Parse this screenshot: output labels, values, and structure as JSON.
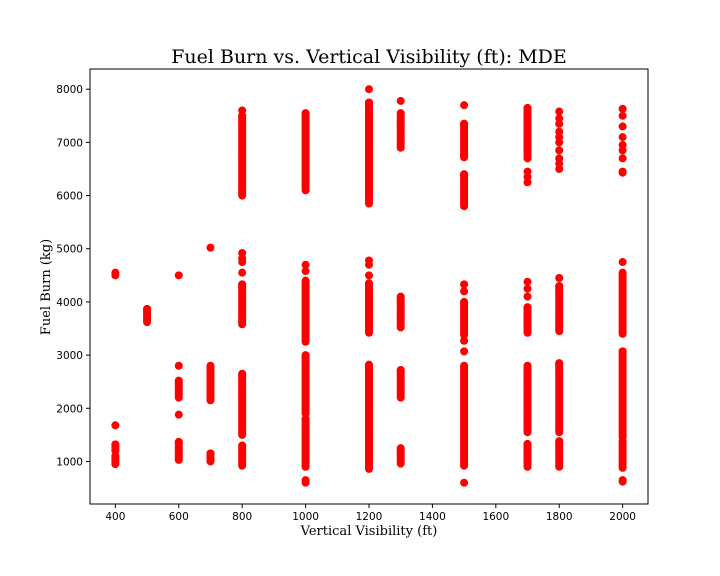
{
  "chart_data": {
    "type": "scatter",
    "title": "Fuel Burn vs. Vertical Visibility (ft): MDE",
    "xlabel": "Vertical Visibility (ft)",
    "ylabel": "Fuel Burn (kg)",
    "xlim": [
      320,
      2080
    ],
    "ylim": [
      200,
      8380
    ],
    "xticks": [
      400,
      600,
      800,
      1000,
      1200,
      1400,
      1600,
      1800,
      2000
    ],
    "yticks": [
      1000,
      2000,
      3000,
      4000,
      5000,
      6000,
      7000,
      8000
    ],
    "marker_color": "#ff0000",
    "grid": false,
    "point_columns": [
      {
        "x": 400,
        "ranges": [
          [
            950,
            1100
          ],
          [
            1200,
            1320
          ]
        ],
        "points": [
          1680,
          4500,
          4550
        ]
      },
      {
        "x": 500,
        "ranges": [
          [
            3620,
            3870
          ]
        ],
        "points": []
      },
      {
        "x": 600,
        "ranges": [
          [
            1030,
            1370
          ],
          [
            2200,
            2520
          ]
        ],
        "points": [
          1880,
          2800,
          4500
        ]
      },
      {
        "x": 700,
        "ranges": [
          [
            1000,
            1150
          ],
          [
            2150,
            2800
          ]
        ],
        "points": [
          5020
        ]
      },
      {
        "x": 800,
        "ranges": [
          [
            920,
            1300
          ],
          [
            1500,
            2650
          ],
          [
            3580,
            4330
          ],
          [
            6000,
            7500
          ]
        ],
        "points": [
          4550,
          4750,
          4820,
          4920,
          7600
        ]
      },
      {
        "x": 1000,
        "ranges": [
          [
            900,
            1800
          ],
          [
            1900,
            3000
          ],
          [
            3250,
            4400
          ],
          [
            6100,
            7550
          ]
        ],
        "points": [
          600,
          650,
          4580,
          4700
        ]
      },
      {
        "x": 1200,
        "ranges": [
          [
            860,
            2820
          ],
          [
            3420,
            4350
          ],
          [
            5850,
            7750
          ]
        ],
        "points": [
          4500,
          4700,
          4780,
          8000
        ]
      },
      {
        "x": 1300,
        "ranges": [
          [
            960,
            1250
          ],
          [
            2200,
            2720
          ],
          [
            3520,
            4100
          ],
          [
            6900,
            7550
          ]
        ],
        "points": [
          7780
        ]
      },
      {
        "x": 1500,
        "ranges": [
          [
            920,
            2800
          ],
          [
            3380,
            4000
          ],
          [
            5800,
            6400
          ],
          [
            6720,
            7350
          ]
        ],
        "points": [
          600,
          3070,
          3270,
          4200,
          4330,
          7700
        ]
      },
      {
        "x": 1700,
        "ranges": [
          [
            900,
            1330
          ],
          [
            1550,
            2800
          ],
          [
            3420,
            3900
          ],
          [
            6700,
            7650
          ]
        ],
        "points": [
          4100,
          4250,
          4380,
          6250,
          6350,
          6450
        ]
      },
      {
        "x": 1800,
        "ranges": [
          [
            900,
            1380
          ],
          [
            1550,
            2850
          ],
          [
            3450,
            4300
          ]
        ],
        "points": [
          4450,
          6500,
          6600,
          6700,
          6850,
          7000,
          7100,
          7200,
          7350,
          7450,
          7580
        ]
      },
      {
        "x": 2000,
        "ranges": [
          [
            880,
            1380
          ],
          [
            1450,
            3070
          ],
          [
            3400,
            4550
          ]
        ],
        "points": [
          620,
          650,
          4750,
          6430,
          6450,
          6700,
          6850,
          6950,
          7100,
          7300,
          7500,
          7630
        ]
      }
    ]
  }
}
